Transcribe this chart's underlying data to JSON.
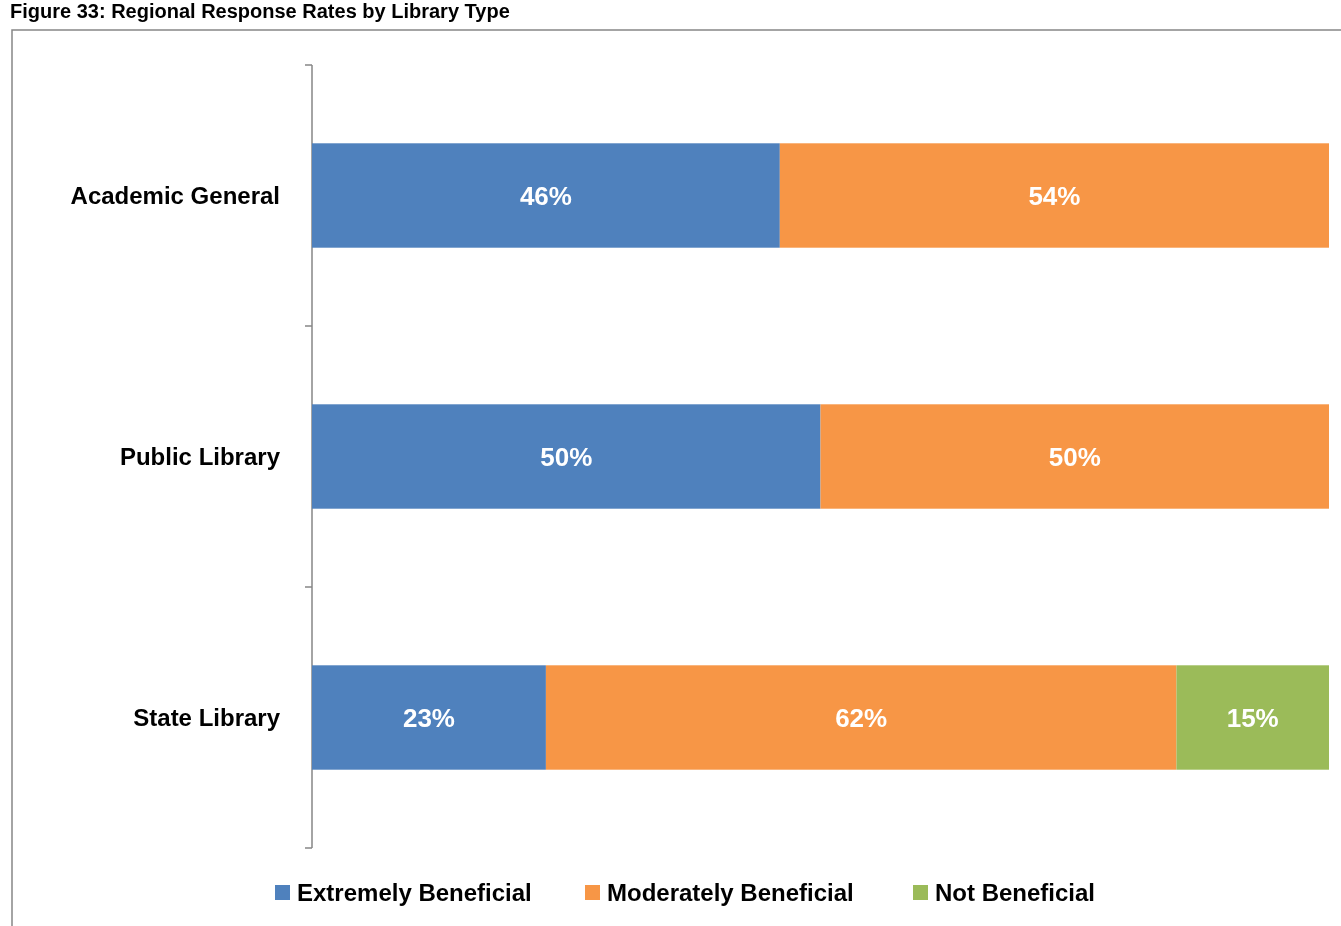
{
  "chart_data": {
    "type": "bar",
    "title": "Figure 33: Regional Response Rates by Library Type",
    "categories": [
      "Academic General",
      "Public Library",
      "State Library"
    ],
    "orientation": "horizontal",
    "stacked": true,
    "xlim": [
      0,
      100
    ],
    "tick_labels": "y",
    "legend": "bottom",
    "series": [
      {
        "name": "Extremely Beneficial",
        "color": "#4f81bd",
        "values": [
          46,
          50,
          23
        ],
        "value_labels": [
          "46%",
          "50%",
          "23%"
        ]
      },
      {
        "name": "Moderately Beneficial",
        "color": "#f79646",
        "values": [
          54,
          50,
          62
        ],
        "value_labels": [
          "54%",
          "50%",
          "62%"
        ]
      },
      {
        "name": "Not Beneficial",
        "color": "#9bbb59",
        "values": [
          null,
          null,
          15
        ],
        "value_labels": [
          null,
          null,
          "15%"
        ]
      }
    ]
  }
}
